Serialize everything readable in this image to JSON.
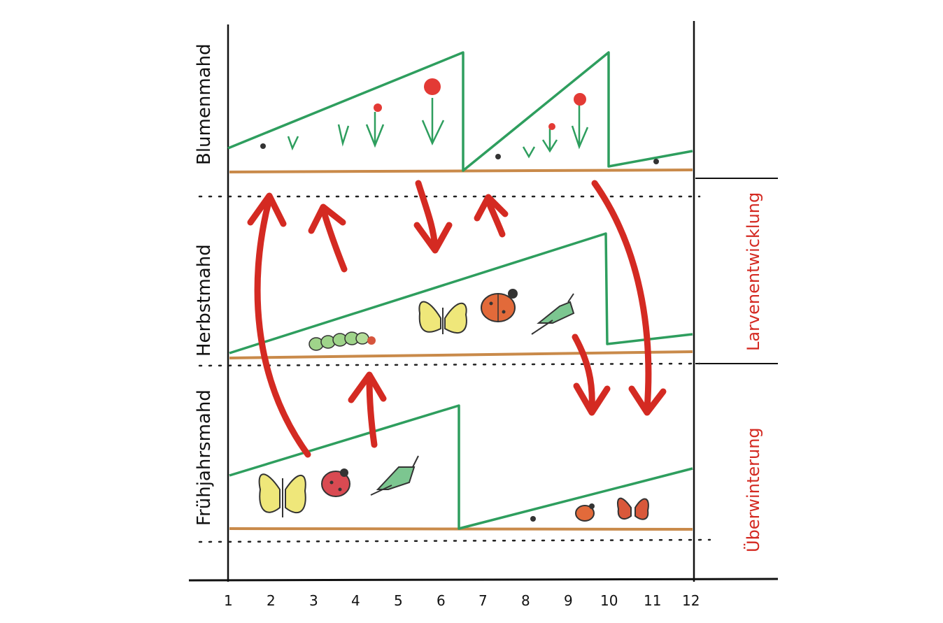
{
  "row_labels": {
    "top": "Blumenmahd",
    "middle": "Herbstmahd",
    "bottom": "Frühjahrsmahd"
  },
  "phase_labels": {
    "upper": "Larvenentwicklung",
    "lower": "Überwinterung"
  },
  "months": [
    "1",
    "2",
    "3",
    "4",
    "5",
    "6",
    "7",
    "8",
    "9",
    "10",
    "11",
    "12"
  ],
  "colors": {
    "growth": "#2e9e5e",
    "ground": "#c98a4a",
    "arrow": "#d42a22",
    "axis": "#111111",
    "phase_text": "#d42a22"
  },
  "icons": {
    "butterfly": "butterfly-icon",
    "ladybug": "ladybug-icon",
    "grasshopper": "grasshopper-icon",
    "caterpillar": "caterpillar-icon",
    "flower": "flower-icon"
  }
}
